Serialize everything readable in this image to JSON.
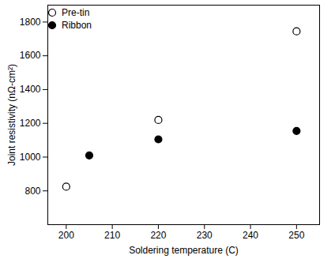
{
  "chart_data": {
    "type": "scatter",
    "x_label": "Soldering temperature (C)",
    "y_label": "Joint resistivity (nΩ-cm²)",
    "series": [
      {
        "name": "Pre-tin",
        "color": "#000000",
        "marker": "open_circle",
        "x": [
          200,
          220,
          250
        ],
        "values": [
          825,
          1220,
          1745
        ]
      },
      {
        "name": "Ribbon",
        "color": "#000000",
        "marker": "circle",
        "x": [
          205,
          220,
          250
        ],
        "values": [
          1010,
          1105,
          1155
        ]
      }
    ],
    "xlim": [
      196,
      255
    ],
    "xticks": [
      200,
      210,
      220,
      230,
      240,
      250
    ],
    "ylim": [
      600,
      1900
    ],
    "yticks": [
      800,
      1000,
      1200,
      1400,
      1600,
      1800
    ],
    "grid": false,
    "legend": "upper left"
  }
}
